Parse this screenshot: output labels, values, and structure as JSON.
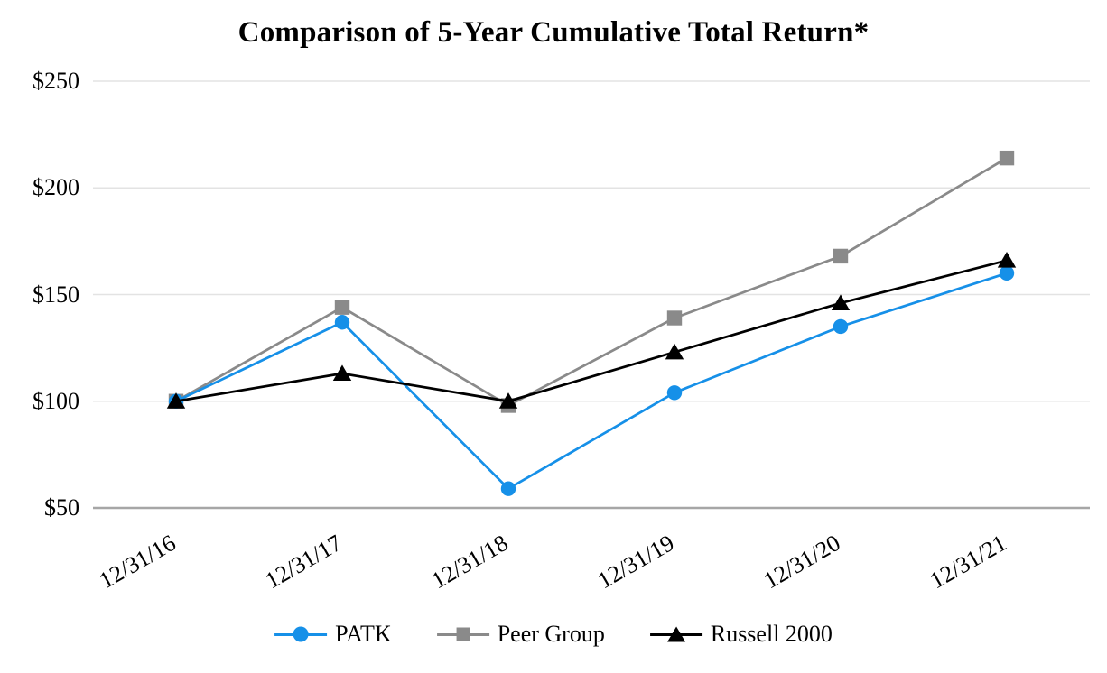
{
  "title": "Comparison of 5-Year Cumulative Total Return*",
  "chart_data": {
    "type": "line",
    "title": "Comparison of 5-Year Cumulative Total Return*",
    "categories": [
      "12/31/16",
      "12/31/17",
      "12/31/18",
      "12/31/19",
      "12/31/20",
      "12/31/21"
    ],
    "series": [
      {
        "name": "PATK",
        "marker": "circle",
        "color": "#1690E8",
        "values": [
          100,
          137,
          59,
          104,
          135,
          160
        ]
      },
      {
        "name": "Peer Group",
        "marker": "square",
        "color": "#8A8A8A",
        "values": [
          100,
          144,
          98,
          139,
          168,
          214
        ]
      },
      {
        "name": "Russell 2000",
        "marker": "triangle",
        "color": "#000000",
        "values": [
          100,
          113,
          100,
          123,
          146,
          166
        ]
      }
    ],
    "y_ticks": [
      {
        "label": "$250",
        "value": 250
      },
      {
        "label": "$200",
        "value": 200
      },
      {
        "label": "$150",
        "value": 150
      },
      {
        "label": "$100",
        "value": 100
      },
      {
        "label": "$50",
        "value": 50
      }
    ],
    "ylim": [
      50,
      250
    ],
    "xlabel": "",
    "ylabel": "",
    "grid": true,
    "legend_position": "bottom",
    "colors": {
      "gridline": "#E3E3E3",
      "axis_line": "#A6A6A6",
      "text": "#000000",
      "background": "#FFFFFF"
    }
  }
}
